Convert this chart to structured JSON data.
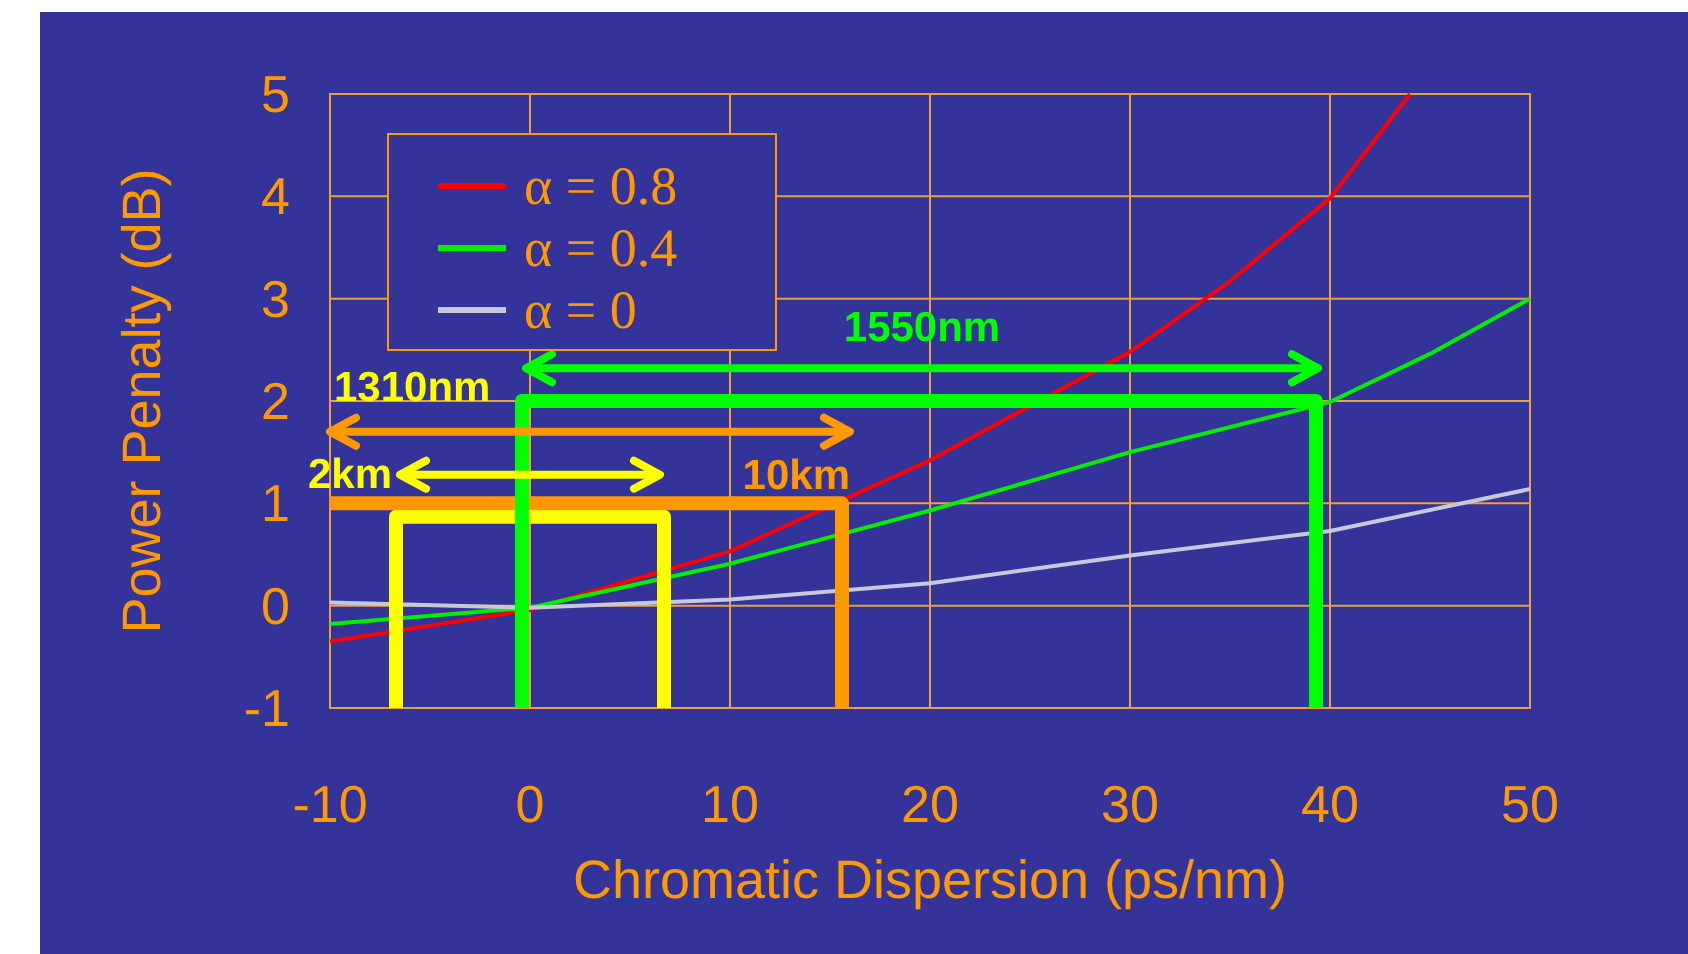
{
  "chart_data": {
    "type": "line",
    "xlabel": "Chromatic Dispersion (ps/nm)",
    "ylabel": "Power Penalty (dB)",
    "xlim": [
      -10,
      50
    ],
    "xticks": [
      -10,
      0,
      10,
      20,
      30,
      40,
      50
    ],
    "ylim": [
      -1,
      5
    ],
    "yticks": [
      -1,
      0,
      1,
      2,
      3,
      4,
      5
    ],
    "grid": true,
    "legend": "top left",
    "series": [
      {
        "name": "α = 0.8",
        "color": "#ff0000",
        "x": [
          -10,
          0,
          10,
          20,
          30,
          35,
          40,
          44
        ],
        "values": [
          -0.35,
          -0.04,
          0.53,
          1.42,
          2.48,
          3.17,
          3.98,
          5
        ]
      },
      {
        "name": "α = 0.4",
        "color": "#00ee00",
        "x": [
          -10,
          0,
          10,
          20,
          30,
          40,
          45,
          50
        ],
        "values": [
          -0.18,
          -0.02,
          0.41,
          0.93,
          1.5,
          1.99,
          2.46,
          3
        ]
      },
      {
        "name": "α = 0",
        "color": "#c8c8dc",
        "x": [
          -10,
          0,
          10,
          20,
          30,
          40,
          50
        ],
        "values": [
          0.03,
          -0.02,
          0.06,
          0.22,
          0.49,
          0.73,
          1.14
        ]
      },
      {
        "color": "#ffff00",
        "x": [
          -6.7,
          -6.7,
          6.7,
          6.7
        ],
        "values": [
          -1,
          0.87,
          0.87,
          -1
        ]
      },
      {
        "color": "#ff9900",
        "x": [
          -10,
          15.6,
          15.6
        ],
        "values": [
          1,
          1,
          -1
        ]
      },
      {
        "color": "#00ff00",
        "x": [
          -0.4,
          -0.4,
          39.3,
          39.3
        ],
        "values": [
          -1,
          2,
          2,
          -1
        ]
      },
      {
        "color": "#00ff00",
        "x": [
          -0.2,
          39.4
        ],
        "values": [
          2.32,
          2.32
        ]
      },
      {
        "color": "#ff9900",
        "x": [
          -10,
          16
        ],
        "values": [
          1.7,
          1.7
        ]
      },
      {
        "color": "#ffff00",
        "x": [
          -6.5,
          6.5
        ],
        "values": [
          1.28,
          1.28
        ]
      }
    ],
    "annotations": [
      "1310nm",
      "2km",
      "10km",
      "1550nm"
    ]
  }
}
